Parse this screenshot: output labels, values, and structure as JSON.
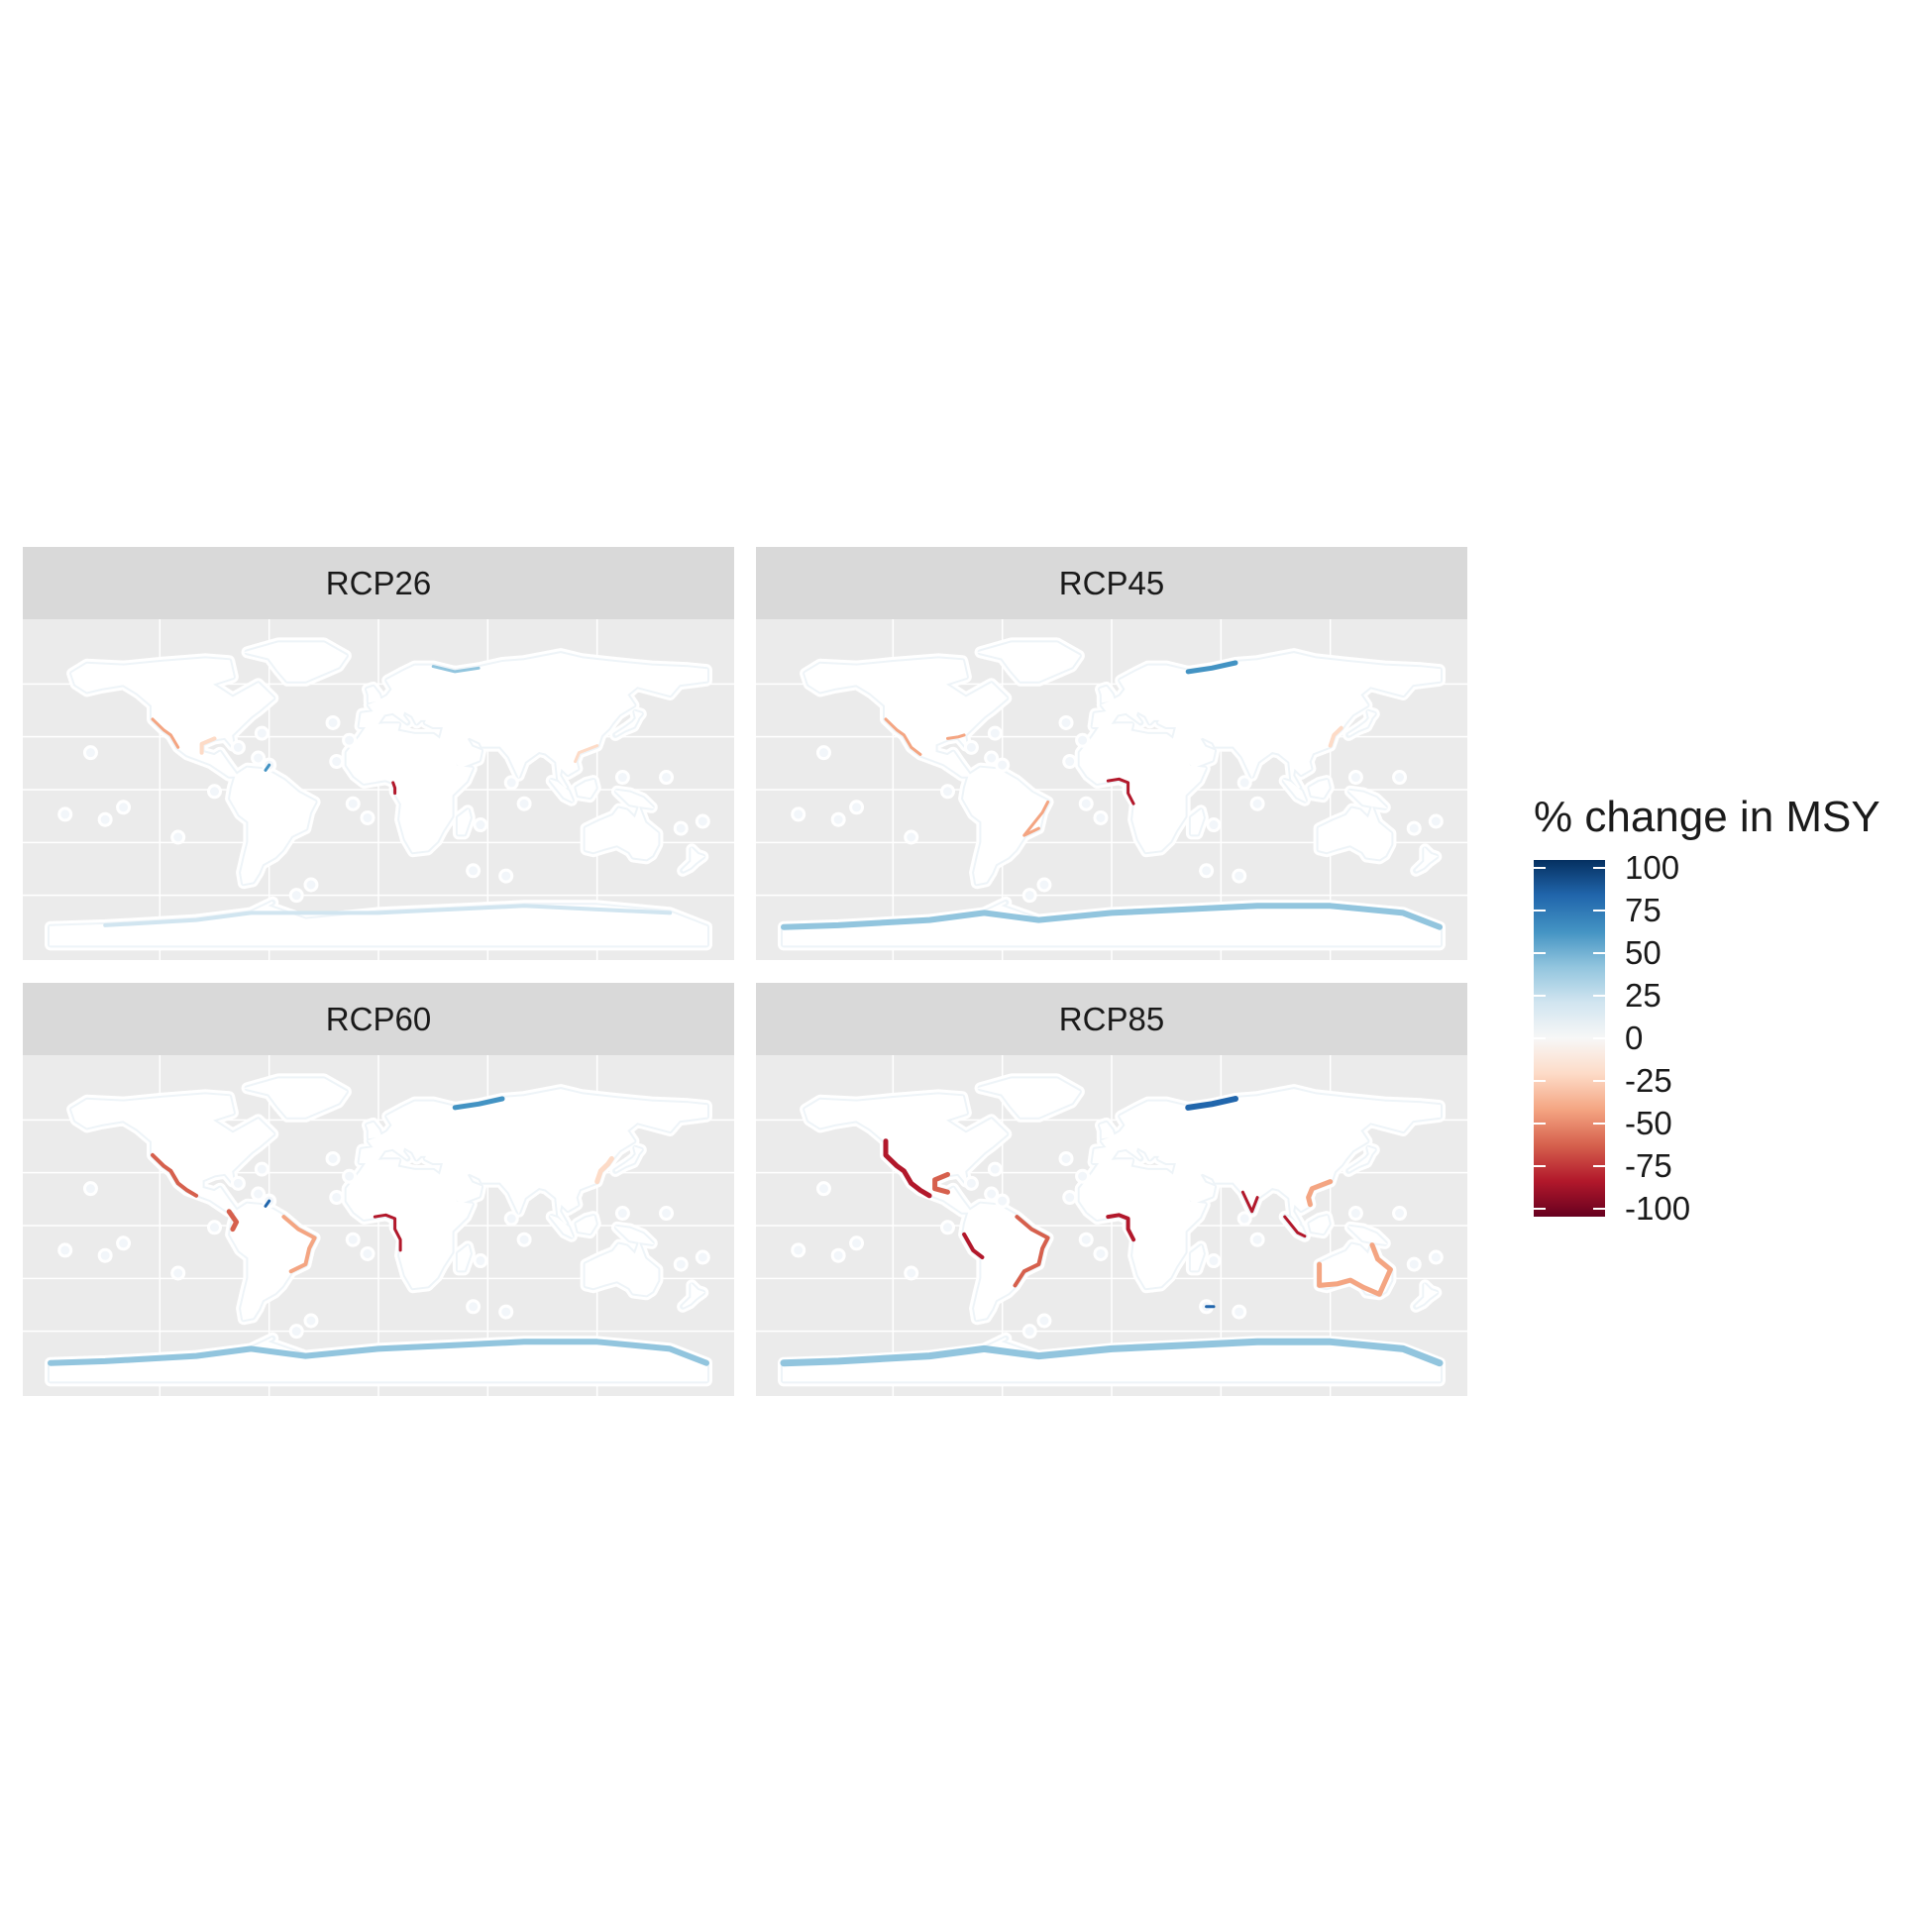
{
  "figure": {
    "legend": {
      "title": "% change in MSY",
      "ticks": [
        "100",
        "75",
        "50",
        "25",
        "0",
        "-25",
        "-50",
        "-75",
        "-100"
      ],
      "tick_values": [
        100,
        75,
        50,
        25,
        0,
        -25,
        -50,
        -75,
        -100
      ],
      "colors": [
        "#053061",
        "#2166ac",
        "#4393c3",
        "#92c5de",
        "#d1e5f0",
        "#f7f7f7",
        "#fddbc7",
        "#f4a582",
        "#d6604d",
        "#b2182b",
        "#67001f"
      ]
    },
    "panels": [
      {
        "label": "RCP26"
      },
      {
        "label": "RCP45"
      },
      {
        "label": "RCP60"
      },
      {
        "label": "RCP85"
      }
    ]
  },
  "chart_data": {
    "type": "heatmap",
    "facets": [
      "RCP26",
      "RCP45",
      "RCP60",
      "RCP85"
    ],
    "legend_title": "% change in MSY",
    "color_scale": {
      "min": -100,
      "max": 100,
      "breaks": [
        100,
        75,
        50,
        25,
        0,
        -25,
        -50,
        -75,
        -100
      ],
      "palette": [
        "#67001f",
        "#b2182b",
        "#d6604d",
        "#f4a582",
        "#fddbc7",
        "#f7f7f7",
        "#d1e5f0",
        "#92c5de",
        "#4393c3",
        "#2166ac",
        "#053061"
      ]
    },
    "legend_placement": "right",
    "grid": true
  }
}
